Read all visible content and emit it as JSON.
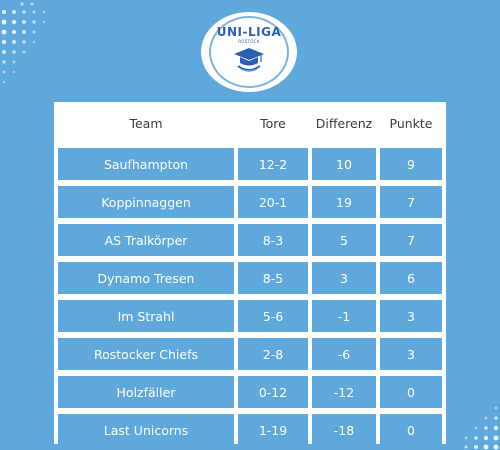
{
  "logo": {
    "title": "UNI-LIGA",
    "subtitle": "ROSTOCK"
  },
  "table": {
    "headers": [
      "Team",
      "Tore",
      "Differenz",
      "Punkte"
    ],
    "rows": [
      {
        "team": "Saufhampton",
        "tore": "12-2",
        "differenz": "10",
        "punkte": "9"
      },
      {
        "team": "Koppinnaggen",
        "tore": "20-1",
        "differenz": "19",
        "punkte": "7"
      },
      {
        "team": "AS Tralkörper",
        "tore": "8-3",
        "differenz": "5",
        "punkte": "7"
      },
      {
        "team": "Dynamo Tresen",
        "tore": "8-5",
        "differenz": "3",
        "punkte": "6"
      },
      {
        "team": "Im Strahl",
        "tore": "5-6",
        "differenz": "-1",
        "punkte": "3"
      },
      {
        "team": "Rostocker Chiefs",
        "tore": "2-8",
        "differenz": "-6",
        "punkte": "3"
      },
      {
        "team": "Holzfäller",
        "tore": "0-12",
        "differenz": "-12",
        "punkte": "0"
      },
      {
        "team": "Last Unicorns",
        "tore": "1-19",
        "differenz": "-18",
        "punkte": "0"
      }
    ]
  },
  "colors": {
    "background": "#5fa8dc",
    "header_bg": "#ffffff",
    "logo_blue": "#2b5fb5"
  }
}
